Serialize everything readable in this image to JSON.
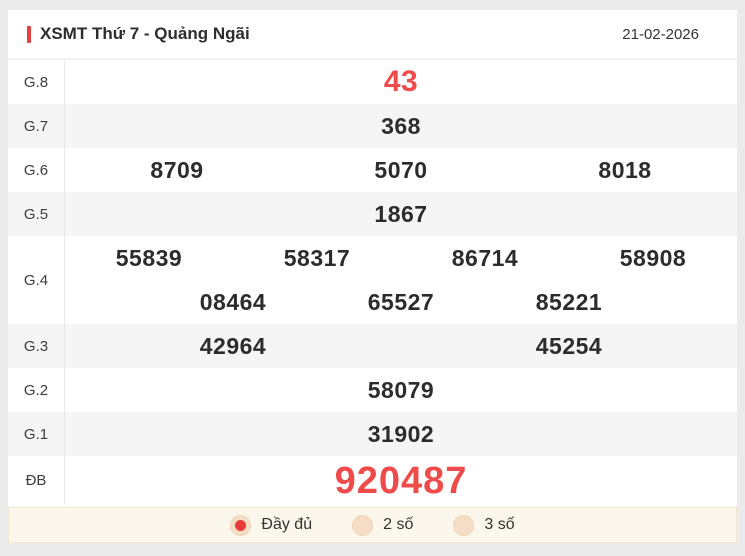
{
  "header": {
    "title": "XSMT Thứ 7 - Quảng Ngãi",
    "date": "21-02-2026"
  },
  "prizes": [
    {
      "label": "G.8",
      "highlight": true,
      "size": "large",
      "rows": [
        [
          "43"
        ]
      ]
    },
    {
      "label": "G.7",
      "highlight": false,
      "size": "normal",
      "rows": [
        [
          "368"
        ]
      ]
    },
    {
      "label": "G.6",
      "highlight": false,
      "size": "normal",
      "rows": [
        [
          "8709",
          "5070",
          "8018"
        ]
      ]
    },
    {
      "label": "G.5",
      "highlight": false,
      "size": "normal",
      "rows": [
        [
          "1867"
        ]
      ]
    },
    {
      "label": "G.4",
      "highlight": false,
      "size": "normal",
      "rows": [
        [
          "55839",
          "58317",
          "86714",
          "58908"
        ],
        [
          "08464",
          "65527",
          "85221"
        ]
      ]
    },
    {
      "label": "G.3",
      "highlight": false,
      "size": "normal",
      "rows": [
        [
          "42964",
          "45254"
        ]
      ]
    },
    {
      "label": "G.2",
      "highlight": false,
      "size": "normal",
      "rows": [
        [
          "58079"
        ]
      ]
    },
    {
      "label": "G.1",
      "highlight": false,
      "size": "normal",
      "rows": [
        [
          "31902"
        ]
      ]
    },
    {
      "label": "ĐB",
      "highlight": true,
      "size": "xlarge",
      "rows": [
        [
          "920487"
        ]
      ]
    }
  ],
  "footer": {
    "options": [
      {
        "label": "Đầy đủ",
        "selected": true
      },
      {
        "label": "2 số",
        "selected": false
      },
      {
        "label": "3 số",
        "selected": false
      }
    ]
  },
  "colors": {
    "accent_red": "#e5403e",
    "highlight_number_red": "#ef4b4b",
    "number_dark": "#2c2c2c",
    "row_alt_bg": "#f5f5f5",
    "footer_bg": "#fcf7ec",
    "radio_fill": "#f5dcc5",
    "radio_dot": "#e93b3a",
    "page_bg": "#ebebeb"
  }
}
